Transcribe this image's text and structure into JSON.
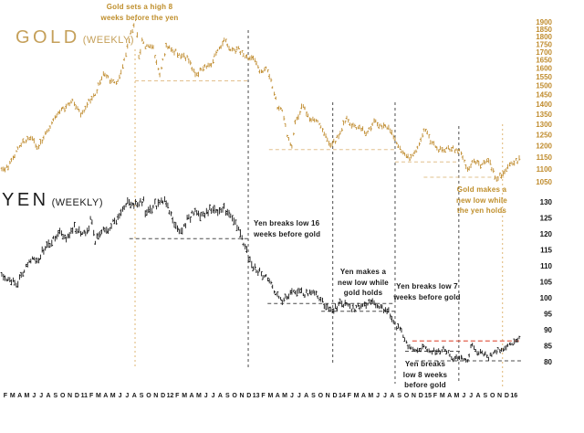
{
  "page": {
    "background": "#ffffff"
  },
  "chart_data": {
    "type": "ohlc",
    "description": "Two stacked weekly price panels comparing Gold and Japanese Yen futures from Feb 2010 through early 2016, annotated with lead-lag breakout notes",
    "panels": [
      {
        "id": "gold",
        "title": "GOLD",
        "subtitle": "(WEEKLY)",
        "scale": "log",
        "axis_side": "right",
        "ticks": [
          1900,
          1850,
          1800,
          1750,
          1700,
          1650,
          1600,
          1550,
          1500,
          1450,
          1400,
          1350,
          1300,
          1250,
          1200,
          1150,
          1100,
          1050
        ],
        "ylim": [
          1040,
          1930
        ],
        "series_name": "Gold weekly",
        "color_key": "gold_series",
        "seed": 11,
        "anchors": [
          [
            0,
            1100
          ],
          [
            1,
            1113
          ],
          [
            2,
            1180
          ],
          [
            3,
            1215
          ],
          [
            4,
            1244
          ],
          [
            5,
            1185
          ],
          [
            6,
            1246
          ],
          [
            7,
            1307
          ],
          [
            8,
            1357
          ],
          [
            9,
            1385
          ],
          [
            10,
            1421
          ],
          [
            11,
            1340
          ],
          [
            12,
            1411
          ],
          [
            13,
            1439
          ],
          [
            14,
            1556
          ],
          [
            15,
            1536
          ],
          [
            16,
            1500
          ],
          [
            17,
            1628
          ],
          [
            18,
            1826
          ],
          [
            18.7,
            1905
          ],
          [
            19.2,
            1640
          ],
          [
            19.6,
            1780
          ],
          [
            20,
            1722
          ],
          [
            21,
            1746
          ],
          [
            22,
            1566
          ],
          [
            23,
            1737
          ],
          [
            24,
            1711
          ],
          [
            25,
            1668
          ],
          [
            26,
            1664
          ],
          [
            27,
            1558
          ],
          [
            28,
            1598
          ],
          [
            29,
            1615
          ],
          [
            30,
            1692
          ],
          [
            31,
            1771
          ],
          [
            32,
            1719
          ],
          [
            33,
            1715
          ],
          [
            34,
            1675
          ],
          [
            35,
            1661
          ],
          [
            36,
            1588
          ],
          [
            37,
            1595
          ],
          [
            38,
            1472
          ],
          [
            38.6,
            1365
          ],
          [
            39,
            1390
          ],
          [
            40,
            1224
          ],
          [
            40.4,
            1185
          ],
          [
            41,
            1313
          ],
          [
            42,
            1394
          ],
          [
            43,
            1327
          ],
          [
            44,
            1323
          ],
          [
            45,
            1253
          ],
          [
            46,
            1200
          ],
          [
            47,
            1244
          ],
          [
            48,
            1326
          ],
          [
            49,
            1291
          ],
          [
            50,
            1288
          ],
          [
            51,
            1250
          ],
          [
            52,
            1322
          ],
          [
            53,
            1285
          ],
          [
            54,
            1287
          ],
          [
            55,
            1216
          ],
          [
            56,
            1165
          ],
          [
            57,
            1140
          ],
          [
            58,
            1184
          ],
          [
            59,
            1283
          ],
          [
            60,
            1213
          ],
          [
            61,
            1183
          ],
          [
            62,
            1184
          ],
          [
            63,
            1190
          ],
          [
            64,
            1172
          ],
          [
            65,
            1095
          ],
          [
            66,
            1134
          ],
          [
            67,
            1115
          ],
          [
            68,
            1142
          ],
          [
            69,
            1056
          ],
          [
            70,
            1090
          ],
          [
            71,
            1120
          ],
          [
            72.4,
            1145
          ]
        ]
      },
      {
        "id": "yen",
        "title": "YEN",
        "subtitle": "(WEEKLY)",
        "scale": "linear",
        "axis_side": "right",
        "ticks": [
          130,
          125,
          120,
          115,
          110,
          105,
          100,
          95,
          90,
          85,
          80
        ],
        "ylim": [
          79,
          131
        ],
        "series_name": "Yen weekly",
        "color_key": "yen_series",
        "seed": 23,
        "anchors": [
          [
            0,
            106.5
          ],
          [
            1,
            106.2
          ],
          [
            2,
            104.2
          ],
          [
            3,
            107.5
          ],
          [
            4,
            112
          ],
          [
            5,
            111.3
          ],
          [
            6,
            115.5
          ],
          [
            7,
            117.5
          ],
          [
            8,
            121
          ],
          [
            9,
            118.5
          ],
          [
            10,
            122
          ],
          [
            11,
            121
          ],
          [
            12,
            120.5
          ],
          [
            12.5,
            126
          ],
          [
            13,
            117.8
          ],
          [
            14,
            120.5
          ],
          [
            15,
            122
          ],
          [
            16,
            124.5
          ],
          [
            17,
            128.5
          ],
          [
            17.6,
            130
          ],
          [
            18,
            129
          ],
          [
            19,
            129.5
          ],
          [
            19.8,
            130.6
          ],
          [
            20,
            127
          ],
          [
            21,
            128.5
          ],
          [
            22,
            129.8
          ],
          [
            23,
            129.3
          ],
          [
            24,
            123.5
          ],
          [
            25,
            121
          ],
          [
            26,
            124.5
          ],
          [
            27,
            127
          ],
          [
            28,
            125.5
          ],
          [
            29,
            127.5
          ],
          [
            30,
            127
          ],
          [
            31,
            128
          ],
          [
            32,
            125.5
          ],
          [
            33,
            121.5
          ],
          [
            34,
            115.5
          ],
          [
            35,
            109.5
          ],
          [
            36,
            108
          ],
          [
            37,
            106
          ],
          [
            38,
            102.5
          ],
          [
            39,
            99
          ],
          [
            40,
            100.8
          ],
          [
            41,
            102
          ],
          [
            42,
            101.5
          ],
          [
            43,
            101
          ],
          [
            44,
            101.5
          ],
          [
            45,
            97.5
          ],
          [
            46,
            95.8
          ],
          [
            47,
            98
          ],
          [
            48,
            98.2
          ],
          [
            49,
            96.8
          ],
          [
            50,
            97.5
          ],
          [
            51,
            98
          ],
          [
            52,
            98.5
          ],
          [
            53,
            97.2
          ],
          [
            54,
            96
          ],
          [
            55,
            91.5
          ],
          [
            56,
            88.5
          ],
          [
            57,
            84
          ],
          [
            58,
            83.4
          ],
          [
            59,
            85
          ],
          [
            60,
            83.5
          ],
          [
            61,
            83.2
          ],
          [
            62,
            83.8
          ],
          [
            63,
            80.8
          ],
          [
            64,
            81.6
          ],
          [
            65,
            80.6
          ],
          [
            65.7,
            86.1
          ],
          [
            66,
            83.2
          ],
          [
            67,
            83
          ],
          [
            68,
            81.3
          ],
          [
            69,
            83.2
          ],
          [
            70,
            84.3
          ],
          [
            71,
            85.2
          ],
          [
            72.4,
            87.5
          ]
        ]
      }
    ],
    "x_axis": {
      "note": "month initials, Feb 2010 - Jan 2016, year number marks January",
      "labels": [
        "F",
        "M",
        "A",
        "M",
        "J",
        "J",
        "A",
        "S",
        "O",
        "N",
        "D",
        "11",
        "F",
        "M",
        "A",
        "M",
        "J",
        "J",
        "A",
        "S",
        "O",
        "N",
        "D",
        "12",
        "F",
        "M",
        "A",
        "M",
        "J",
        "J",
        "A",
        "S",
        "O",
        "N",
        "D",
        "13",
        "F",
        "M",
        "A",
        "M",
        "J",
        "J",
        "A",
        "S",
        "O",
        "N",
        "D",
        "14",
        "F",
        "M",
        "A",
        "M",
        "J",
        "J",
        "A",
        "S",
        "O",
        "N",
        "D",
        "15",
        "F",
        "M",
        "A",
        "M",
        "J",
        "J",
        "A",
        "S",
        "O",
        "N",
        "D",
        "16"
      ]
    },
    "annotations": [
      {
        "id": "gold-high",
        "text": "Gold sets a high 8\nweeks before the yen",
        "color_key": "gold_anno"
      },
      {
        "id": "yen16",
        "text": "Yen breaks low 16\nweeks before gold",
        "color_key": "black_anno"
      },
      {
        "id": "yen-newlow",
        "text": "Yen makes a\nnew low while\ngold holds",
        "color_key": "black_anno"
      },
      {
        "id": "yen7",
        "text": "Yen breaks low 7\nweeks before gold",
        "color_key": "black_anno"
      },
      {
        "id": "gold-newlow",
        "text": "Gold makes a\nnew low while\nthe yen holds",
        "color_key": "gold_anno"
      },
      {
        "id": "yen8",
        "text": "Yen breaks\nlow 8 weeks\nbefore gold",
        "color_key": "black_anno"
      }
    ],
    "vlines": [
      {
        "t": 18.6,
        "y1": 54,
        "y2": 402,
        "style": "gold"
      },
      {
        "t": 34.4,
        "y1": 33,
        "y2": 402,
        "style": "dark"
      },
      {
        "t": 46.2,
        "y1": 112,
        "y2": 398,
        "style": "dark"
      },
      {
        "t": 54.9,
        "y1": 112,
        "y2": 420,
        "style": "dark"
      },
      {
        "t": 63.8,
        "y1": 138,
        "y2": 420,
        "style": "dark"
      },
      {
        "t": 69.9,
        "y1": 136,
        "y2": 424,
        "style": "gold"
      }
    ],
    "hlines": [
      {
        "panel": "gold",
        "value": 1527,
        "t1": 18.6,
        "t2": 34.4,
        "style": "gold"
      },
      {
        "panel": "gold",
        "value": 1183,
        "t1": 37.3,
        "t2": 54.9,
        "style": "gold"
      },
      {
        "panel": "gold",
        "value": 1130,
        "t1": 54.9,
        "t2": 63.8,
        "style": "gold"
      },
      {
        "panel": "gold",
        "value": 1068,
        "t1": 58.9,
        "t2": 70.2,
        "style": "gold"
      },
      {
        "panel": "yen",
        "value": 118.5,
        "t1": 17.8,
        "t2": 34.4,
        "style": "dark"
      },
      {
        "panel": "yen",
        "value": 98.2,
        "t1": 37.1,
        "t2": 54.9,
        "style": "dark"
      },
      {
        "panel": "yen",
        "value": 95.8,
        "t1": 44.6,
        "t2": 54.9,
        "style": "dark"
      },
      {
        "panel": "yen",
        "value": 83.3,
        "t1": 56.3,
        "t2": 64.2,
        "style": "dark"
      },
      {
        "panel": "yen",
        "value": 80.3,
        "t1": 57.7,
        "t2": 72.6,
        "style": "dark"
      },
      {
        "panel": "yen",
        "value": 86.5,
        "t1": 57.3,
        "t2": 72.4,
        "style": "red"
      }
    ],
    "colors": {
      "gold_series": "#bf8b2e",
      "yen_series": "#161616",
      "gold_dash": "#e2c08d",
      "gold_dash_v": "#dfb675",
      "dark_dash": "#4d4d4d",
      "red_dash": "#e2604d",
      "gold_axis_text": "#c08c2e",
      "axis_text": "#151515",
      "gold_anno": "#bf8e2b",
      "black_anno": "#191919",
      "gold_title": "#c5a05a",
      "yen_title": "#1c1c1c"
    }
  }
}
